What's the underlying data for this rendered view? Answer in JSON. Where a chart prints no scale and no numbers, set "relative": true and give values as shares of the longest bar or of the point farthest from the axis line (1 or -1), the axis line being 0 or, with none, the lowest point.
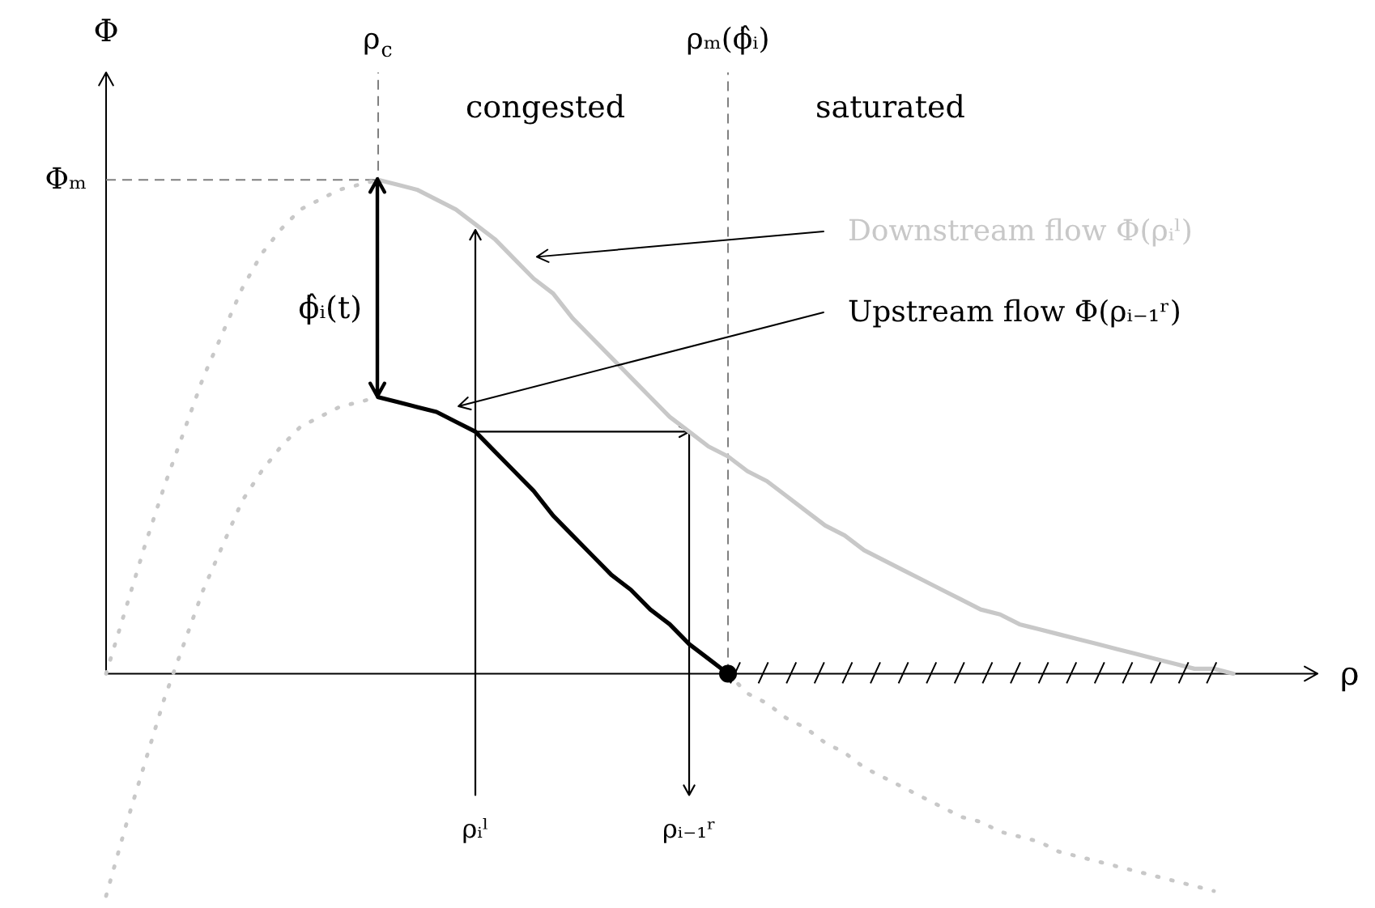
{
  "chart_data": {
    "type": "line",
    "relative": true,
    "xlabel": "ρ",
    "ylabel": "Φ",
    "categories": [
      null,
      null,
      null,
      null,
      null,
      null,
      null,
      null,
      null,
      null,
      null,
      null,
      null,
      null,
      "ρ$_{c}$",
      null,
      null,
      null,
      null,
      "ρᵢˡ",
      null,
      null,
      null,
      null,
      null,
      null,
      null,
      null,
      null,
      null,
      "ρᵢ₋₁ʳ",
      null,
      "ρₘ(ϕ̂ᵢ)",
      null,
      null,
      null,
      null,
      null,
      null,
      null,
      null,
      null,
      null,
      null,
      null,
      null,
      null,
      null,
      null,
      null,
      null,
      null,
      null,
      null,
      null,
      null,
      null,
      null,
      null
    ],
    "series": [
      {
        "color": "#c8c8c8",
        "line_style": "dotted",
        "values": [
          0,
          0.13,
          0.26,
          0.38,
          0.49,
          0.6,
          0.69,
          0.78,
          0.85,
          0.9,
          0.94,
          0.96,
          0.98,
          0.99,
          1.0,
          null,
          null,
          null,
          null,
          null,
          null,
          null,
          null,
          null,
          null,
          null,
          null,
          null,
          null,
          null,
          null,
          null,
          null,
          null,
          null,
          null,
          null,
          null,
          null,
          null,
          null,
          null,
          null,
          null,
          null,
          null,
          null,
          null,
          null,
          null,
          null,
          null,
          null,
          null,
          null,
          null,
          null,
          null,
          null
        ]
      },
      {
        "name": "Downstream flow Φ(ρᵢˡ)",
        "color": "#c8c8c8",
        "line_style": "solid",
        "values": [
          null,
          null,
          null,
          null,
          null,
          null,
          null,
          null,
          null,
          null,
          null,
          null,
          null,
          null,
          1.0,
          0.99,
          0.98,
          0.96,
          0.94,
          0.91,
          0.88,
          0.84,
          0.8,
          0.77,
          0.72,
          0.68,
          0.64,
          0.6,
          0.56,
          0.52,
          0.49,
          0.46,
          0.44,
          0.41,
          0.39,
          0.36,
          0.33,
          0.3,
          0.28,
          0.25,
          0.23,
          0.21,
          0.19,
          0.17,
          0.15,
          0.13,
          0.12,
          0.1,
          0.09,
          0.08,
          0.07,
          0.06,
          0.05,
          0.04,
          0.03,
          0.02,
          0.01,
          0.01,
          0
        ]
      },
      {
        "color": "#c8c8c8",
        "line_style": "dotted",
        "values": [
          -0.45,
          -0.31,
          -0.18,
          -0.05,
          0.06,
          0.17,
          0.26,
          0.35,
          0.41,
          0.46,
          0.5,
          0.52,
          0.54,
          0.55,
          0.56,
          null,
          null,
          null,
          null,
          null,
          null,
          null,
          null,
          null,
          null,
          null,
          null,
          null,
          null,
          null,
          null,
          null,
          null,
          null,
          null,
          null,
          null,
          null,
          null,
          null,
          null,
          null,
          null,
          null,
          null,
          null,
          null,
          null,
          null,
          null,
          null,
          null,
          null,
          null,
          null,
          null,
          null,
          null,
          null
        ]
      },
      {
        "name": "Upstream flow Φ(ρᵢ₋₁ʳ)",
        "color": "#000000",
        "line_style": "solid",
        "values": [
          null,
          null,
          null,
          null,
          null,
          null,
          null,
          null,
          null,
          null,
          null,
          null,
          null,
          null,
          0.56,
          0.55,
          0.54,
          0.53,
          0.51,
          0.49,
          0.45,
          0.41,
          0.37,
          0.32,
          0.28,
          0.24,
          0.2,
          0.17,
          0.13,
          0.1,
          0.06,
          0.03,
          0,
          null,
          null,
          null,
          null,
          null,
          null,
          null,
          null,
          null,
          null,
          null,
          null,
          null,
          null,
          null,
          null,
          null,
          null,
          null,
          null,
          null,
          null,
          null,
          null,
          null,
          null
        ]
      },
      {
        "color": "#c8c8c8",
        "line_style": "dotted",
        "values": [
          null,
          null,
          null,
          null,
          null,
          null,
          null,
          null,
          null,
          null,
          null,
          null,
          null,
          null,
          null,
          null,
          null,
          null,
          null,
          null,
          null,
          null,
          null,
          null,
          null,
          null,
          null,
          null,
          null,
          null,
          null,
          null,
          0,
          -0.04,
          -0.06,
          -0.09,
          -0.11,
          -0.14,
          -0.16,
          -0.19,
          -0.21,
          -0.23,
          -0.25,
          -0.27,
          -0.29,
          -0.3,
          -0.32,
          -0.33,
          -0.34,
          -0.36,
          -0.37,
          -0.38,
          -0.39,
          -0.4,
          -0.41,
          -0.42,
          -0.43,
          -0.44,
          null
        ]
      },
      {
        "type": "scatter",
        "color": "#000000",
        "marker": "circle",
        "values": [
          null,
          null,
          null,
          null,
          null,
          null,
          null,
          null,
          null,
          null,
          null,
          null,
          null,
          null,
          null,
          null,
          null,
          null,
          null,
          null,
          null,
          null,
          null,
          null,
          null,
          null,
          null,
          null,
          null,
          null,
          null,
          null,
          0,
          null,
          null,
          null,
          null,
          null,
          null,
          null,
          null,
          null,
          null,
          null,
          null,
          null,
          null,
          null,
          null,
          null,
          null,
          null,
          null,
          null,
          null,
          null,
          null,
          null,
          null
        ]
      }
    ],
    "ref_lines": [
      {
        "axis": "y",
        "value": 1.0,
        "label": "Φₘ",
        "line_style": "dashed",
        "color": "#7f7f7f"
      },
      {
        "axis": "x",
        "value": "ρ$_{c}$",
        "line_style": "dashed",
        "color": "#7f7f7f"
      },
      {
        "axis": "x",
        "value": "ρₘ(ϕ̂ᵢ)",
        "line_style": "dashed",
        "color": "#7f7f7f"
      },
      {
        "axis": "x",
        "value": "ρᵢˡ",
        "line_style": "solid",
        "color": "#000000"
      },
      {
        "axis": "y",
        "value": 0.49,
        "line_style": "solid",
        "color": "#000000"
      },
      {
        "axis": "x",
        "value": "ρᵢ₋₁ʳ",
        "line_style": "solid",
        "color": "#000000"
      }
    ],
    "annotations": [
      "congested",
      "saturated",
      {
        "text": "ϕ̂ᵢ(t)",
        "x": "ρ$_{c}$",
        "y": 0.74
      }
    ]
  }
}
